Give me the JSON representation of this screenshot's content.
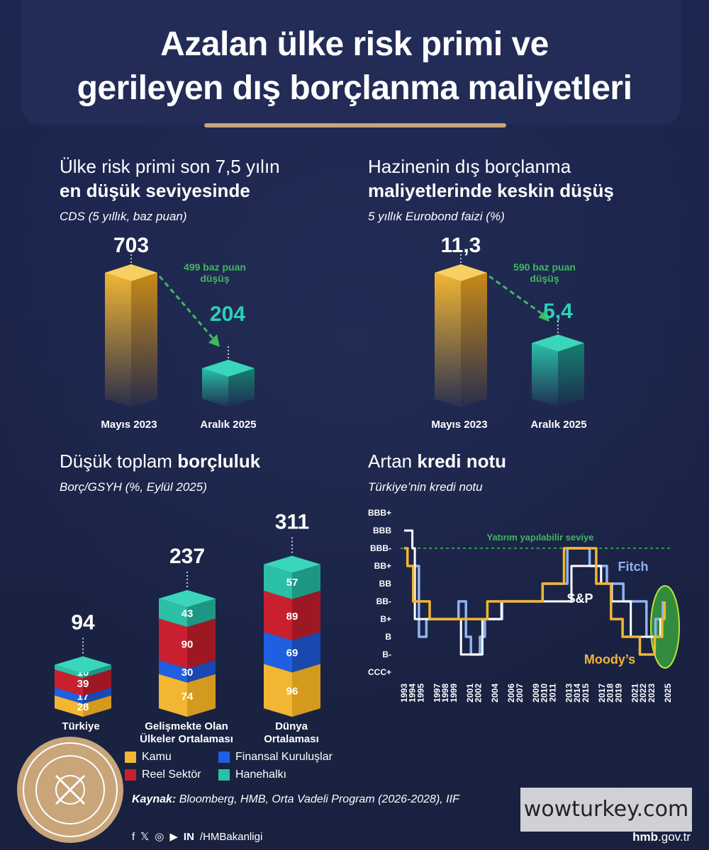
{
  "title": {
    "line1": "Azalan ülke risk primi ve",
    "line2": "gerileyen dış borçlanma maliyetleri"
  },
  "cds": {
    "heading_l1": "Ülke risk primi son 7,5 yılın",
    "heading_l2": "en düşük seviyesinde",
    "subtitle": "CDS (5 yıllık, baz puan)",
    "drop_label_l1": "499 baz puan",
    "drop_label_l2": "düşüş"
  },
  "eurobond": {
    "heading_l1": "Hazinenin dış borçlanma",
    "heading_l2": "maliyetlerinde keskin düşüş",
    "subtitle": "5 yıllık Eurobond faizi (%)",
    "drop_label_l1": "590 baz puan",
    "drop_label_l2": "düşüş"
  },
  "debt": {
    "heading_plain": "Düşük toplam ",
    "heading_bold": "borçluluk",
    "subtitle": "Borç/GSYH (%, Eylül 2025)",
    "legend": [
      "Kamu",
      "Finansal Kuruluşlar",
      "Reel Sektör",
      "Hanehalkı"
    ]
  },
  "rating": {
    "heading_plain": "Artan ",
    "heading_bold": "kredi notu",
    "subtitle": "Türkiye’nin kredi notu",
    "invest_label": "Yatırım yapılabilir seviye"
  },
  "source": {
    "label": "Kaynak:",
    "text": " Bloomberg, HMB, Orta Vadeli Program (2026-2028), IIF"
  },
  "footer": {
    "social": "/HMBakanligi",
    "site_bold": "hmb",
    "site_rest": ".gov.tr",
    "icons": [
      "f",
      "𝕏",
      "◎",
      "▶",
      "IN"
    ]
  },
  "watermark": "wowturkey.com",
  "colors": {
    "gold": "#f2b632",
    "teal": "#2bbfa6",
    "red": "#c8202f",
    "blue": "#1f5fe0",
    "green": "#3fb85c",
    "fitch": "#8fb3f0",
    "sp": "#ffffff",
    "moodys": "#f2b632"
  },
  "chart_data": [
    {
      "type": "bar",
      "title": "Ülke risk primi son 7,5 yılın en düşük seviyesinde",
      "subtitle": "CDS (5 yıllık, baz puan)",
      "categories": [
        "Mayıs 2023",
        "Aralık 2025"
      ],
      "values": [
        703,
        204
      ],
      "value_labels": [
        "703",
        "204"
      ],
      "annotation": "499 baz puan düşüş"
    },
    {
      "type": "bar",
      "title": "Hazinenin dış borçlanma maliyetlerinde keskin düşüş",
      "subtitle": "5 yıllık Eurobond faizi (%)",
      "categories": [
        "Mayıs 2023",
        "Aralık 2025"
      ],
      "values": [
        11.3,
        5.4
      ],
      "value_labels": [
        "11,3",
        "5,4"
      ],
      "annotation": "590 baz puan düşüş"
    },
    {
      "type": "bar",
      "stacked": true,
      "title": "Düşük toplam borçluluk",
      "subtitle": "Borç/GSYH (%, Eylül 2025)",
      "categories": [
        "Türkiye",
        "Gelişmekte Olan Ülkeler Ortalaması",
        "Dünya Ortalaması"
      ],
      "category_lines": [
        [
          "Türkiye"
        ],
        [
          "Gelişmekte Olan",
          "Ülkeler Ortalaması"
        ],
        [
          "Dünya",
          "Ortalaması"
        ]
      ],
      "totals": [
        94,
        237,
        311
      ],
      "series": [
        {
          "name": "Kamu",
          "values": [
            28,
            74,
            96
          ]
        },
        {
          "name": "Finansal Kuruluşlar",
          "values": [
            17,
            30,
            69
          ]
        },
        {
          "name": "Reel Sektör",
          "values": [
            39,
            90,
            89
          ]
        },
        {
          "name": "Hanehalkı",
          "values": [
            10,
            43,
            57
          ]
        }
      ]
    },
    {
      "type": "line",
      "title": "Artan kredi notu",
      "subtitle": "Türkiye’nin kredi notu",
      "y_categories": [
        "CCC+",
        "B-",
        "B",
        "B+",
        "BB-",
        "BB",
        "BB+",
        "BBB-",
        "BBB",
        "BBB+"
      ],
      "x_ticks": [
        1993,
        1994,
        1995,
        1997,
        1998,
        1999,
        2001,
        2002,
        2004,
        2006,
        2007,
        2009,
        2010,
        2011,
        2013,
        2014,
        2015,
        2017,
        2018,
        2019,
        2021,
        2022,
        2023,
        2025
      ],
      "xlim": [
        1993,
        2025
      ],
      "reference_line": {
        "label": "Yatırım yapılabilir seviye",
        "y": "BBB-"
      },
      "series": [
        {
          "name": "Fitch",
          "points": [
            [
              1994.1,
              4
            ],
            [
              1994.1,
              6
            ],
            [
              1994.8,
              6
            ],
            [
              1994.8,
              2
            ],
            [
              1995.7,
              2
            ],
            [
              1995.7,
              3
            ],
            [
              1999.6,
              3
            ],
            [
              1999.6,
              4
            ],
            [
              2000.5,
              4
            ],
            [
              2000.5,
              2
            ],
            [
              2001.1,
              2
            ],
            [
              2001.1,
              1
            ],
            [
              2002.2,
              1
            ],
            [
              2002.2,
              2
            ],
            [
              2002.8,
              2
            ],
            [
              2002.8,
              3
            ],
            [
              2004.9,
              3
            ],
            [
              2004.9,
              4
            ],
            [
              2009.8,
              4
            ],
            [
              2009.8,
              5
            ],
            [
              2012.8,
              5
            ],
            [
              2012.8,
              7
            ],
            [
              2015.5,
              7
            ],
            [
              2015.5,
              6
            ],
            [
              2017.6,
              6
            ],
            [
              2017.6,
              5
            ],
            [
              2019.6,
              5
            ],
            [
              2019.6,
              4
            ],
            [
              2022.4,
              4
            ],
            [
              2022.4,
              2
            ],
            [
              2023.5,
              2
            ],
            [
              2023.5,
              3
            ],
            [
              2024.4,
              3
            ],
            [
              2024.4,
              4
            ]
          ]
        },
        {
          "name": "S&P",
          "points": [
            [
              1993.0,
              8
            ],
            [
              1994.0,
              8
            ],
            [
              1994.0,
              7
            ],
            [
              1994.3,
              7
            ],
            [
              1994.3,
              3
            ],
            [
              1999.9,
              3
            ],
            [
              1999.9,
              1
            ],
            [
              2002.5,
              1
            ],
            [
              2002.5,
              3
            ],
            [
              2004.8,
              3
            ],
            [
              2004.8,
              4
            ],
            [
              2013.3,
              4
            ],
            [
              2013.3,
              6
            ],
            [
              2016.9,
              6
            ],
            [
              2016.9,
              5
            ],
            [
              2018.2,
              5
            ],
            [
              2018.2,
              4
            ],
            [
              2020.5,
              4
            ],
            [
              2020.5,
              2
            ],
            [
              2024.1,
              2
            ],
            [
              2024.1,
              3
            ],
            [
              2024.6,
              3
            ],
            [
              2024.6,
              4
            ]
          ]
        },
        {
          "name": "Moody's",
          "points": [
            [
              1993.0,
              7
            ],
            [
              1993.4,
              7
            ],
            [
              1993.4,
              6
            ],
            [
              1994.1,
              6
            ],
            [
              1994.1,
              4
            ],
            [
              1996.1,
              4
            ],
            [
              1996.1,
              3
            ],
            [
              2003.1,
              3
            ],
            [
              2003.1,
              4
            ],
            [
              2009.8,
              4
            ],
            [
              2009.8,
              5
            ],
            [
              2012.4,
              5
            ],
            [
              2012.4,
              7
            ],
            [
              2016.3,
              7
            ],
            [
              2016.3,
              5
            ],
            [
              2018.1,
              5
            ],
            [
              2018.1,
              3
            ],
            [
              2019.5,
              3
            ],
            [
              2019.5,
              2
            ],
            [
              2021.6,
              2
            ],
            [
              2021.6,
              1
            ],
            [
              2023.4,
              1
            ],
            [
              2023.4,
              2
            ],
            [
              2024.3,
              2
            ],
            [
              2024.3,
              3
            ],
            [
              2024.6,
              3
            ],
            [
              2024.6,
              4
            ]
          ]
        }
      ]
    }
  ]
}
